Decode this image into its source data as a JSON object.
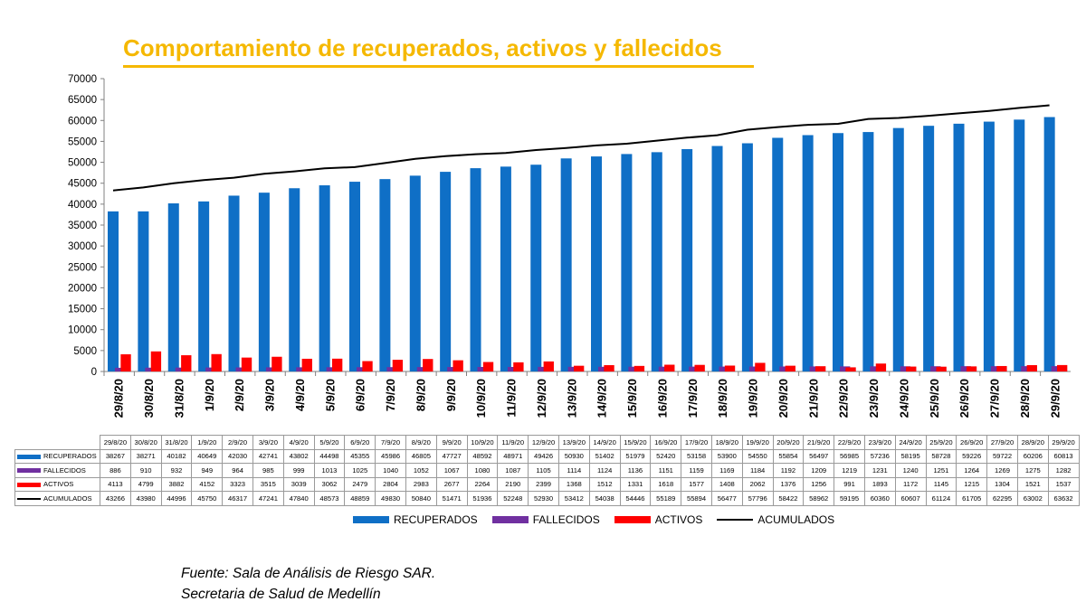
{
  "title": "Comportamiento de recuperados, activos y fallecidos",
  "source_line1": "Fuente: Sala de  Análisis de Riesgo SAR.",
  "source_line2": "Secretaria de Salud de Medellín",
  "colors": {
    "title": "#f5b800",
    "recuperados": "#0f6fc6",
    "fallecidos": "#7030a0",
    "activos": "#ff0000",
    "acumulados": "#000000"
  },
  "chart_data": {
    "type": "bar",
    "title": "Comportamiento de recuperados, activos y fallecidos",
    "xlabel": "",
    "ylabel": "",
    "ylim": [
      0,
      70000
    ],
    "yticks": [
      0,
      5000,
      10000,
      15000,
      20000,
      25000,
      30000,
      35000,
      40000,
      45000,
      50000,
      55000,
      60000,
      65000,
      70000
    ],
    "grid": false,
    "legend_position": "bottom",
    "categories": [
      "29/8/20",
      "30/8/20",
      "31/8/20",
      "1/9/20",
      "2/9/20",
      "3/9/20",
      "4/9/20",
      "5/9/20",
      "6/9/20",
      "7/9/20",
      "8/9/20",
      "9/9/20",
      "10/9/20",
      "11/9/20",
      "12/9/20",
      "13/9/20",
      "14/9/20",
      "15/9/20",
      "16/9/20",
      "17/9/20",
      "18/9/20",
      "19/9/20",
      "20/9/20",
      "21/9/20",
      "22/9/20",
      "23/9/20",
      "24/9/20",
      "25/9/20",
      "26/9/20",
      "27/9/20",
      "28/9/20",
      "29/9/20"
    ],
    "series": [
      {
        "name": "RECUPERADOS",
        "type": "bar",
        "color": "#0f6fc6",
        "values": [
          38267,
          38271,
          40182,
          40649,
          42030,
          42741,
          43802,
          44498,
          45355,
          45986,
          46805,
          47727,
          48592,
          48971,
          49426,
          50930,
          51402,
          51979,
          52420,
          53158,
          53900,
          54550,
          55854,
          56497,
          56985,
          57236,
          58195,
          58728,
          59226,
          59722,
          60206,
          60813
        ]
      },
      {
        "name": "FALLECIDOS",
        "type": "bar",
        "color": "#7030a0",
        "values": [
          886,
          910,
          932,
          949,
          964,
          985,
          999,
          1013,
          1025,
          1040,
          1052,
          1067,
          1080,
          1087,
          1105,
          1114,
          1124,
          1136,
          1151,
          1159,
          1169,
          1184,
          1192,
          1209,
          1219,
          1231,
          1240,
          1251,
          1264,
          1269,
          1275,
          1282
        ]
      },
      {
        "name": "ACTIVOS",
        "type": "bar",
        "color": "#ff0000",
        "values": [
          4113,
          4799,
          3882,
          4152,
          3323,
          3515,
          3039,
          3062,
          2479,
          2804,
          2983,
          2677,
          2264,
          2190,
          2399,
          1368,
          1512,
          1331,
          1618,
          1577,
          1408,
          2062,
          1376,
          1256,
          991,
          1893,
          1172,
          1145,
          1215,
          1304,
          1521,
          1537
        ]
      },
      {
        "name": "ACUMULADOS",
        "type": "line",
        "color": "#000000",
        "values": [
          43266,
          43980,
          44996,
          45750,
          46317,
          47241,
          47840,
          48573,
          48859,
          49830,
          50840,
          51471,
          51936,
          52248,
          52930,
          53412,
          54038,
          54446,
          55189,
          55894,
          56477,
          57796,
          58422,
          58962,
          59195,
          60360,
          60607,
          61124,
          61705,
          62295,
          63002,
          63632
        ]
      }
    ]
  }
}
